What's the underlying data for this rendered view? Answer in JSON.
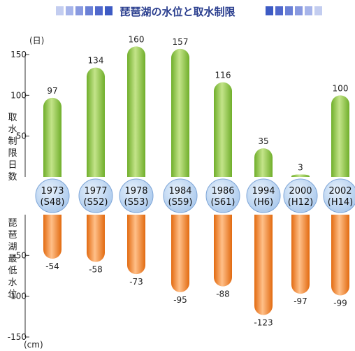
{
  "chart_data": {
    "type": "bar",
    "title": "琵琶湖の水位と取水制限",
    "categories": [
      "1973 (S48)",
      "1977 (S52)",
      "1978 (S53)",
      "1984 (S59)",
      "1986 (S61)",
      "1994 (H6)",
      "2000 (H12)",
      "2002 (H14)"
    ],
    "years": [
      "1973",
      "1977",
      "1978",
      "1984",
      "1986",
      "1994",
      "2000",
      "2002"
    ],
    "eras": [
      "(S48)",
      "(S52)",
      "(S53)",
      "(S59)",
      "(S61)",
      "(H6)",
      "(H12)",
      "(H14)"
    ],
    "series": [
      {
        "name": "取水制限日数",
        "values": [
          97,
          134,
          160,
          157,
          116,
          35,
          3,
          100
        ],
        "labels": [
          "97",
          "134",
          "160",
          "157",
          "116",
          "35",
          "3",
          "100"
        ]
      },
      {
        "name": "琵琶湖最低水位",
        "values": [
          -54,
          -58,
          -73,
          -95,
          -88,
          -123,
          -97,
          -99
        ],
        "labels": [
          "-54",
          "-58",
          "-73",
          "-95",
          "-88",
          "-123",
          "-97",
          "-99"
        ]
      }
    ],
    "upper_axis": {
      "label": "取水制限日数",
      "unit": "(日)",
      "range": [
        0,
        150
      ],
      "ticks": [
        "50",
        "100",
        "150"
      ]
    },
    "lower_axis": {
      "label": "琵琶湖最低水位",
      "unit": "(cm)",
      "range": [
        0,
        -150
      ],
      "ticks": [
        "-50",
        "-100",
        "-150"
      ]
    },
    "colors": {
      "upper_bar": "#8ec63f",
      "lower_bar": "#f08a2a",
      "year_circle": "#bcd6f2",
      "title": "#2b3f8f",
      "title_squares": "#3d5bc4"
    }
  }
}
